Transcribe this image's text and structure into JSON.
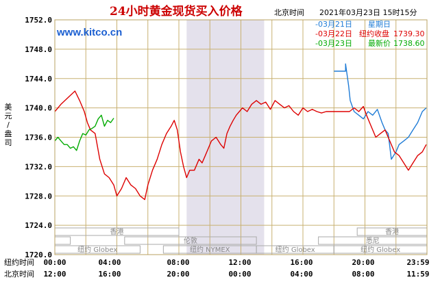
{
  "header": {
    "title": "24小时黄金现货买入价格",
    "location": "北京时间",
    "timestamp": "2021年03月23日 15时15分",
    "watermark": "www.kitco.cn"
  },
  "legend": [
    {
      "date": "03月21日",
      "label": "星期日",
      "value": "",
      "color": "#1e7bd6"
    },
    {
      "date": "03月22日",
      "label": "纽约收盘",
      "value": "1739.30",
      "color": "#dd0000"
    },
    {
      "date": "03月23日",
      "label": "最新价",
      "value": "1738.60",
      "color": "#00aa00"
    }
  ],
  "yaxis_label": [
    "美",
    "元",
    "/",
    "盎",
    "司"
  ],
  "xaxis": {
    "row1_label": "纽约时间",
    "row2_label": "北京时间",
    "row1_ticks": [
      "00:00",
      "04:00",
      "08:00",
      "12:00",
      "16:00",
      "20:00",
      "23:59"
    ],
    "row2_ticks": [
      "12:00",
      "16:00",
      "20:00",
      "00:00",
      "04:00",
      "08:00",
      "11:59"
    ]
  },
  "sessions": [
    {
      "name": "香港",
      "start": 0,
      "end": 8,
      "row": 1
    },
    {
      "name": "香港",
      "start": 19.5,
      "end": 24,
      "row": 1
    },
    {
      "name": "",
      "start": 0,
      "end": 1,
      "row": 2
    },
    {
      "name": "伦敦",
      "start": 4.5,
      "end": 13,
      "row": 2
    },
    {
      "name": "悉尼",
      "start": 17,
      "end": 24,
      "row": 2
    },
    {
      "name": "纽约 Globex",
      "start": 0,
      "end": 5.5,
      "row": 3
    },
    {
      "name": "纽约 NYMEX",
      "start": 7,
      "end": 13,
      "row": 3
    },
    {
      "name": "纽约 Globex",
      "start": 13,
      "end": 18,
      "row": 3
    },
    {
      "name": "纽约 Globex",
      "start": 18,
      "end": 24,
      "row": 3
    }
  ],
  "chart_data": {
    "type": "line",
    "title": "24小时黄金现货买入价格",
    "ylabel": "美元/盎司",
    "ylim": [
      1720,
      1752
    ],
    "yticks": [
      1720.0,
      1724.0,
      1728.0,
      1732.0,
      1736.0,
      1740.0,
      1744.0,
      1748.0,
      1752.0
    ],
    "xlim": [
      0,
      24
    ],
    "shaded_x": [
      8.5,
      13.5
    ],
    "grid": true,
    "series": [
      {
        "name": "03月21日",
        "color": "#1e7bd6",
        "x": [
          18.0,
          18.75,
          18.75,
          18.95,
          19.05,
          19.3,
          19.6,
          19.9,
          20.2,
          20.5,
          20.8,
          21.1,
          21.3,
          21.5,
          21.7,
          21.85,
          22.0,
          22.2,
          22.5,
          22.8,
          23.1,
          23.4,
          23.7,
          23.95
        ],
        "values": [
          1745.0,
          1745.0,
          1746.0,
          1743.0,
          1741.0,
          1739.5,
          1739.0,
          1738.5,
          1739.5,
          1739.0,
          1739.8,
          1738.0,
          1737.0,
          1736.5,
          1733.0,
          1733.5,
          1734.0,
          1735.0,
          1735.5,
          1736.0,
          1737.0,
          1738.0,
          1739.5,
          1740.0
        ]
      },
      {
        "name": "03月22日",
        "color": "#dd0000",
        "x": [
          0.0,
          0.4,
          0.9,
          1.3,
          1.6,
          1.9,
          2.1,
          2.3,
          2.6,
          2.9,
          3.2,
          3.5,
          3.8,
          4.0,
          4.3,
          4.6,
          4.9,
          5.2,
          5.5,
          5.8,
          6.0,
          6.3,
          6.6,
          6.9,
          7.2,
          7.5,
          7.7,
          7.9,
          8.1,
          8.3,
          8.5,
          8.7,
          9.0,
          9.3,
          9.5,
          9.7,
          9.9,
          10.1,
          10.4,
          10.7,
          10.9,
          11.1,
          11.3,
          11.5,
          11.7,
          11.9,
          12.1,
          12.4,
          12.7,
          13.0,
          13.3,
          13.6,
          13.9,
          14.2,
          14.5,
          14.8,
          15.1,
          15.4,
          15.7,
          16.0,
          16.3,
          16.6,
          16.9,
          17.2,
          17.5,
          17.8,
          18.1,
          18.4,
          18.7,
          19.0,
          19.3,
          19.6,
          19.9,
          20.1,
          20.4,
          20.7,
          21.0,
          21.3,
          21.6,
          21.9,
          22.2,
          22.5,
          22.8,
          23.1,
          23.4,
          23.7,
          23.95
        ],
        "values": [
          1739.5,
          1740.5,
          1741.5,
          1742.3,
          1741.0,
          1739.5,
          1738.0,
          1737.0,
          1736.5,
          1733.0,
          1731.0,
          1730.5,
          1729.5,
          1728.0,
          1729.0,
          1730.5,
          1729.5,
          1729.0,
          1728.0,
          1727.5,
          1729.5,
          1731.5,
          1733.0,
          1735.0,
          1736.5,
          1737.5,
          1738.3,
          1737.0,
          1734.0,
          1732.0,
          1730.5,
          1731.5,
          1731.5,
          1733.0,
          1732.5,
          1733.5,
          1734.5,
          1735.5,
          1736.0,
          1735.0,
          1734.5,
          1736.5,
          1737.5,
          1738.3,
          1739.0,
          1739.5,
          1740.0,
          1739.5,
          1740.5,
          1741.0,
          1740.5,
          1740.8,
          1739.8,
          1741.0,
          1740.5,
          1740.0,
          1740.3,
          1739.5,
          1739.0,
          1740.0,
          1739.5,
          1739.8,
          1739.5,
          1739.3,
          1739.5,
          1739.5,
          1739.5,
          1739.5,
          1739.5,
          1739.5,
          1740.0,
          1739.5,
          1740.2,
          1739.0,
          1737.5,
          1736.0,
          1736.5,
          1737.0,
          1735.5,
          1734.0,
          1733.5,
          1732.5,
          1731.5,
          1732.5,
          1733.5,
          1734.0,
          1735.0
        ]
      },
      {
        "name": "03月23日",
        "color": "#00aa00",
        "x": [
          0.0,
          0.2,
          0.4,
          0.6,
          0.8,
          1.0,
          1.2,
          1.4,
          1.6,
          1.8,
          2.0,
          2.2,
          2.4,
          2.6,
          2.8,
          3.0,
          3.2,
          3.4,
          3.6,
          3.8
        ],
        "values": [
          1735.5,
          1736.0,
          1735.5,
          1735.0,
          1735.0,
          1734.5,
          1734.7,
          1734.2,
          1735.5,
          1736.5,
          1736.3,
          1737.0,
          1737.2,
          1737.5,
          1738.5,
          1739.0,
          1737.5,
          1738.3,
          1738.0,
          1738.6
        ]
      }
    ]
  }
}
